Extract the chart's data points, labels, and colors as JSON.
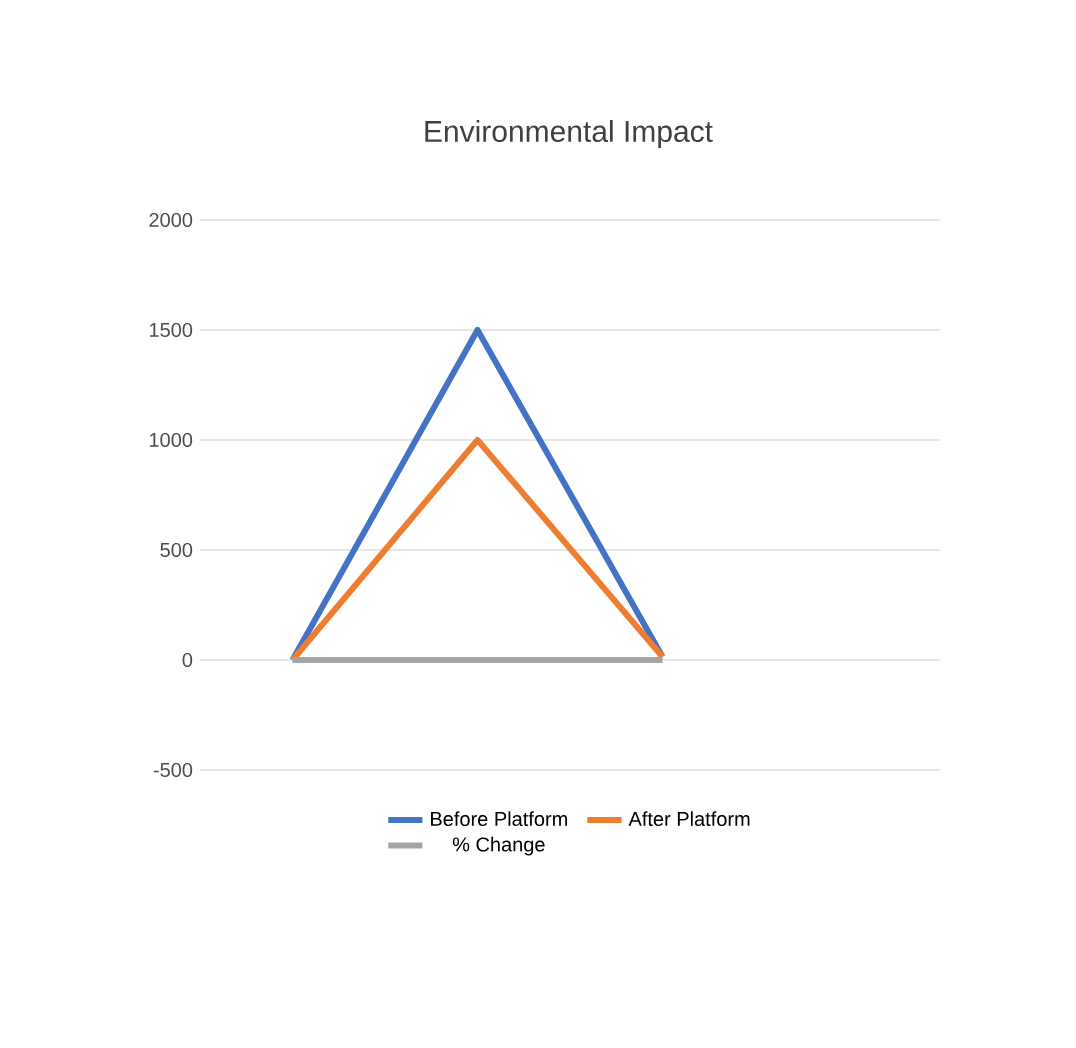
{
  "chart_data": {
    "type": "line",
    "title": "Environmental Impact",
    "categories": [
      null,
      null,
      null,
      null
    ],
    "series": [
      {
        "name": "Before Platform",
        "color": "#4472c4",
        "values": [
          0,
          1500,
          15,
          null
        ]
      },
      {
        "name": "After Platform",
        "color": "#ed7d31",
        "values": [
          0,
          1000,
          15,
          null
        ]
      },
      {
        "name": "% Change",
        "color": "#a5a5a5",
        "values": [
          0,
          0,
          0,
          null
        ]
      }
    ],
    "ylim": [
      -500,
      2000
    ],
    "yticks": [
      -500,
      0,
      500,
      1000,
      1500,
      2000
    ],
    "grid": "y",
    "legend": "bottom",
    "tick_labels": "y",
    "marker": "none",
    "line_style": "solid"
  }
}
